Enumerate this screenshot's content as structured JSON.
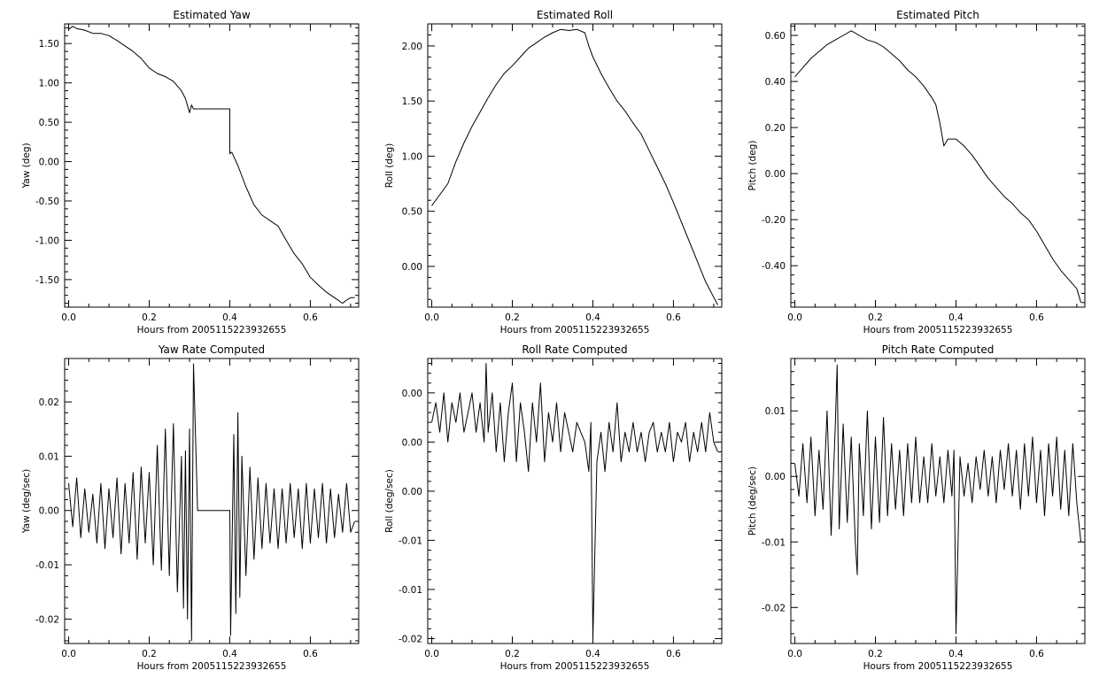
{
  "chart_data": [
    {
      "type": "line",
      "title": "Estimated Yaw",
      "xlabel": "Hours from 2005115223932655",
      "ylabel": "Yaw (deg)",
      "xlim": [
        -0.01,
        0.72
      ],
      "ylim": [
        -1.85,
        1.75
      ],
      "xticks": [
        0.0,
        0.2,
        0.4,
        0.6
      ],
      "xticklabels": [
        "0.0",
        "0.2",
        "0.4",
        "0.6"
      ],
      "yticks": [
        1.5,
        1.0,
        0.5,
        0.0,
        -0.5,
        -1.0,
        -1.5
      ],
      "yticklabels": [
        "1.50",
        "1.00",
        "0.50",
        "0.00",
        "-0.50",
        "-1.00",
        "-1.50"
      ],
      "series": [
        {
          "x": [
            0.0,
            0.01,
            0.02,
            0.04,
            0.06,
            0.08,
            0.1,
            0.12,
            0.14,
            0.16,
            0.18,
            0.2,
            0.22,
            0.24,
            0.26,
            0.28,
            0.29,
            0.3,
            0.305,
            0.31,
            0.4,
            0.4,
            0.405,
            0.42,
            0.44,
            0.46,
            0.48,
            0.5,
            0.52,
            0.54,
            0.56,
            0.58,
            0.6,
            0.62,
            0.64,
            0.66,
            0.68,
            0.69,
            0.7,
            0.71
          ],
          "y": [
            1.68,
            1.72,
            1.69,
            1.67,
            1.63,
            1.63,
            1.6,
            1.54,
            1.47,
            1.4,
            1.31,
            1.19,
            1.12,
            1.08,
            1.02,
            0.9,
            0.8,
            0.62,
            0.72,
            0.67,
            0.67,
            0.1,
            0.12,
            -0.05,
            -0.32,
            -0.55,
            -0.68,
            -0.75,
            -0.82,
            -1.0,
            -1.17,
            -1.3,
            -1.47,
            -1.57,
            -1.66,
            -1.73,
            -1.8,
            -1.76,
            -1.73,
            -1.73
          ]
        }
      ]
    },
    {
      "type": "line",
      "title": "Estimated Roll",
      "xlabel": "Hours from 2005115223932655",
      "ylabel": "Roll (deg)",
      "xlim": [
        -0.01,
        0.72
      ],
      "ylim": [
        -0.37,
        2.2
      ],
      "xticks": [
        0.0,
        0.2,
        0.4,
        0.6
      ],
      "xticklabels": [
        "0.0",
        "0.2",
        "0.4",
        "0.6"
      ],
      "yticks": [
        2.0,
        1.5,
        1.0,
        0.5,
        0.0
      ],
      "yticklabels": [
        "2.00",
        "1.50",
        "1.00",
        "0.50",
        "0.00"
      ],
      "series": [
        {
          "x": [
            0.0,
            0.02,
            0.04,
            0.06,
            0.08,
            0.1,
            0.12,
            0.14,
            0.16,
            0.18,
            0.2,
            0.22,
            0.24,
            0.26,
            0.28,
            0.3,
            0.32,
            0.34,
            0.36,
            0.38,
            0.39,
            0.4,
            0.42,
            0.44,
            0.46,
            0.48,
            0.5,
            0.52,
            0.54,
            0.56,
            0.58,
            0.6,
            0.62,
            0.64,
            0.66,
            0.68,
            0.7,
            0.71
          ],
          "y": [
            0.55,
            0.65,
            0.75,
            0.95,
            1.12,
            1.27,
            1.4,
            1.53,
            1.65,
            1.75,
            1.82,
            1.9,
            1.98,
            2.03,
            2.08,
            2.12,
            2.15,
            2.14,
            2.15,
            2.12,
            2.0,
            1.9,
            1.75,
            1.62,
            1.5,
            1.41,
            1.3,
            1.2,
            1.05,
            0.9,
            0.75,
            0.58,
            0.4,
            0.22,
            0.04,
            -0.14,
            -0.28,
            -0.35
          ]
        }
      ]
    },
    {
      "type": "line",
      "title": "Estimated Pitch",
      "xlabel": "Hours from 2005115223932655",
      "ylabel": "Pitch (deg)",
      "xlim": [
        -0.01,
        0.72
      ],
      "ylim": [
        -0.58,
        0.65
      ],
      "xticks": [
        0.0,
        0.2,
        0.4,
        0.6
      ],
      "xticklabels": [
        "0.0",
        "0.2",
        "0.4",
        "0.6"
      ],
      "yticks": [
        0.6,
        0.4,
        0.2,
        0.0,
        -0.2,
        -0.4
      ],
      "yticklabels": [
        "0.60",
        "0.40",
        "0.20",
        "0.00",
        "-0.20",
        "-0.40"
      ],
      "series": [
        {
          "x": [
            0.0,
            0.02,
            0.04,
            0.06,
            0.08,
            0.1,
            0.12,
            0.14,
            0.16,
            0.18,
            0.2,
            0.22,
            0.24,
            0.26,
            0.28,
            0.3,
            0.32,
            0.34,
            0.35,
            0.36,
            0.37,
            0.38,
            0.4,
            0.42,
            0.44,
            0.46,
            0.48,
            0.5,
            0.52,
            0.54,
            0.56,
            0.58,
            0.6,
            0.62,
            0.64,
            0.66,
            0.68,
            0.7,
            0.71
          ],
          "y": [
            0.42,
            0.46,
            0.5,
            0.53,
            0.56,
            0.58,
            0.6,
            0.62,
            0.6,
            0.58,
            0.57,
            0.55,
            0.52,
            0.49,
            0.45,
            0.42,
            0.38,
            0.33,
            0.3,
            0.22,
            0.12,
            0.15,
            0.15,
            0.12,
            0.08,
            0.03,
            -0.02,
            -0.06,
            -0.1,
            -0.13,
            -0.17,
            -0.2,
            -0.25,
            -0.31,
            -0.37,
            -0.42,
            -0.46,
            -0.5,
            -0.56
          ]
        }
      ]
    },
    {
      "type": "line",
      "title": "Yaw Rate Computed",
      "xlabel": "Hours from 2005115223932655",
      "ylabel": "Yaw (deg/sec)",
      "xlim": [
        -0.01,
        0.72
      ],
      "ylim": [
        -0.0245,
        0.028
      ],
      "xticks": [
        0.0,
        0.2,
        0.4,
        0.6
      ],
      "xticklabels": [
        "0.0",
        "0.2",
        "0.4",
        "0.6"
      ],
      "yticks": [
        0.02,
        0.01,
        0.0,
        -0.01,
        -0.02
      ],
      "yticklabels": [
        "0.02",
        "0.01",
        "0.00",
        "-0.01",
        "-0.02"
      ],
      "series": [
        {
          "x": [
            0.0,
            0.01,
            0.02,
            0.03,
            0.04,
            0.05,
            0.06,
            0.07,
            0.08,
            0.09,
            0.1,
            0.11,
            0.12,
            0.13,
            0.14,
            0.15,
            0.16,
            0.17,
            0.18,
            0.19,
            0.2,
            0.21,
            0.22,
            0.23,
            0.24,
            0.25,
            0.26,
            0.27,
            0.28,
            0.285,
            0.29,
            0.295,
            0.3,
            0.305,
            0.31,
            0.32,
            0.4,
            0.402,
            0.41,
            0.415,
            0.42,
            0.425,
            0.43,
            0.44,
            0.45,
            0.46,
            0.47,
            0.48,
            0.49,
            0.5,
            0.51,
            0.52,
            0.53,
            0.54,
            0.55,
            0.56,
            0.57,
            0.58,
            0.59,
            0.6,
            0.61,
            0.62,
            0.63,
            0.64,
            0.65,
            0.66,
            0.67,
            0.68,
            0.69,
            0.7,
            0.71
          ],
          "y": [
            0.005,
            -0.003,
            0.006,
            -0.005,
            0.004,
            -0.004,
            0.003,
            -0.006,
            0.005,
            -0.007,
            0.004,
            -0.005,
            0.006,
            -0.008,
            0.005,
            -0.006,
            0.007,
            -0.009,
            0.008,
            -0.006,
            0.007,
            -0.01,
            0.012,
            -0.011,
            0.015,
            -0.012,
            0.016,
            -0.015,
            0.01,
            -0.018,
            0.011,
            -0.02,
            0.015,
            -0.024,
            0.027,
            0.0,
            0.0,
            -0.023,
            0.014,
            -0.019,
            0.018,
            -0.016,
            0.01,
            -0.012,
            0.008,
            -0.009,
            0.006,
            -0.007,
            0.005,
            -0.006,
            0.004,
            -0.007,
            0.004,
            -0.006,
            0.005,
            -0.005,
            0.004,
            -0.007,
            0.005,
            -0.006,
            0.004,
            -0.005,
            0.005,
            -0.006,
            0.004,
            -0.005,
            0.003,
            -0.004,
            0.005,
            -0.004,
            -0.002
          ]
        }
      ]
    },
    {
      "type": "line",
      "title": "Roll Rate Computed",
      "xlabel": "Hours from 2005115223932655",
      "ylabel": "Roll (deg/sec)",
      "xlim": [
        -0.01,
        0.72
      ],
      "ylim": [
        -0.0205,
        0.0085
      ],
      "xticks": [
        0.0,
        0.2,
        0.4,
        0.6
      ],
      "xticklabels": [
        "0.0",
        "0.2",
        "0.4",
        "0.6"
      ],
      "yticks": [
        0.005,
        0.0,
        -0.005,
        -0.01,
        -0.015,
        -0.02
      ],
      "yticklabels": [
        "0.00",
        "0.00",
        "0.00",
        "-0.01",
        "-0.01",
        "-0.02"
      ],
      "series": [
        {
          "x": [
            0.0,
            0.01,
            0.02,
            0.03,
            0.04,
            0.05,
            0.06,
            0.07,
            0.08,
            0.09,
            0.1,
            0.11,
            0.12,
            0.13,
            0.135,
            0.14,
            0.15,
            0.16,
            0.17,
            0.18,
            0.19,
            0.2,
            0.21,
            0.22,
            0.23,
            0.24,
            0.25,
            0.26,
            0.27,
            0.28,
            0.29,
            0.3,
            0.31,
            0.32,
            0.33,
            0.34,
            0.35,
            0.36,
            0.37,
            0.38,
            0.39,
            0.395,
            0.4,
            0.41,
            0.42,
            0.43,
            0.44,
            0.45,
            0.46,
            0.47,
            0.48,
            0.49,
            0.5,
            0.51,
            0.52,
            0.53,
            0.54,
            0.55,
            0.56,
            0.57,
            0.58,
            0.59,
            0.6,
            0.61,
            0.62,
            0.63,
            0.64,
            0.65,
            0.66,
            0.67,
            0.68,
            0.69,
            0.7,
            0.71
          ],
          "y": [
            0.002,
            0.004,
            0.001,
            0.005,
            0.0,
            0.004,
            0.002,
            0.005,
            0.001,
            0.003,
            0.005,
            0.001,
            0.004,
            0.0,
            0.008,
            0.001,
            0.005,
            -0.001,
            0.004,
            -0.002,
            0.003,
            0.006,
            -0.002,
            0.004,
            0.001,
            -0.003,
            0.004,
            0.0,
            0.006,
            -0.002,
            0.003,
            0.0,
            0.004,
            -0.001,
            0.003,
            0.001,
            -0.001,
            0.002,
            0.001,
            0.0,
            -0.003,
            0.002,
            -0.02,
            -0.002,
            0.001,
            -0.003,
            0.002,
            -0.001,
            0.004,
            -0.002,
            0.001,
            -0.001,
            0.002,
            -0.001,
            0.001,
            -0.002,
            0.001,
            0.002,
            -0.001,
            0.001,
            -0.001,
            0.002,
            -0.002,
            0.001,
            0.0,
            0.002,
            -0.002,
            0.001,
            -0.001,
            0.002,
            -0.001,
            0.003,
            0.0,
            -0.001
          ]
        }
      ]
    },
    {
      "type": "line",
      "title": "Pitch Rate Computed",
      "xlabel": "Hours from 2005115223932655",
      "ylabel": "Pitch (deg/sec)",
      "xlim": [
        -0.01,
        0.72
      ],
      "ylim": [
        -0.0255,
        0.018
      ],
      "xticks": [
        0.0,
        0.2,
        0.4,
        0.6
      ],
      "xticklabels": [
        "0.0",
        "0.2",
        "0.4",
        "0.6"
      ],
      "yticks": [
        0.01,
        0.0,
        -0.01,
        -0.02
      ],
      "yticklabels": [
        "0.01",
        "0.00",
        "-0.01",
        "-0.02"
      ],
      "series": [
        {
          "x": [
            0.0,
            0.01,
            0.02,
            0.03,
            0.04,
            0.05,
            0.06,
            0.07,
            0.08,
            0.09,
            0.1,
            0.105,
            0.11,
            0.12,
            0.13,
            0.14,
            0.15,
            0.155,
            0.16,
            0.17,
            0.18,
            0.19,
            0.2,
            0.21,
            0.22,
            0.23,
            0.24,
            0.25,
            0.26,
            0.27,
            0.28,
            0.29,
            0.3,
            0.31,
            0.32,
            0.33,
            0.34,
            0.35,
            0.36,
            0.37,
            0.38,
            0.39,
            0.395,
            0.4,
            0.41,
            0.42,
            0.43,
            0.44,
            0.45,
            0.46,
            0.47,
            0.48,
            0.49,
            0.5,
            0.51,
            0.52,
            0.53,
            0.54,
            0.55,
            0.56,
            0.57,
            0.58,
            0.59,
            0.6,
            0.61,
            0.62,
            0.63,
            0.64,
            0.65,
            0.66,
            0.67,
            0.68,
            0.69,
            0.7,
            0.71
          ],
          "y": [
            0.002,
            -0.003,
            0.005,
            -0.004,
            0.006,
            -0.006,
            0.004,
            -0.005,
            0.01,
            -0.009,
            0.007,
            0.017,
            -0.008,
            0.008,
            -0.007,
            0.006,
            -0.01,
            -0.015,
            0.005,
            -0.006,
            0.01,
            -0.008,
            0.006,
            -0.007,
            0.009,
            -0.006,
            0.005,
            -0.005,
            0.004,
            -0.006,
            0.005,
            -0.004,
            0.006,
            -0.004,
            0.003,
            -0.004,
            0.005,
            -0.003,
            0.003,
            -0.004,
            0.004,
            -0.003,
            0.004,
            -0.024,
            0.003,
            -0.003,
            0.002,
            -0.004,
            0.003,
            -0.002,
            0.004,
            -0.003,
            0.003,
            -0.004,
            0.004,
            -0.002,
            0.005,
            -0.003,
            0.004,
            -0.005,
            0.005,
            -0.003,
            0.006,
            -0.004,
            0.004,
            -0.006,
            0.005,
            -0.003,
            0.006,
            -0.005,
            0.004,
            -0.006,
            0.005,
            -0.004,
            -0.01
          ]
        }
      ]
    }
  ]
}
